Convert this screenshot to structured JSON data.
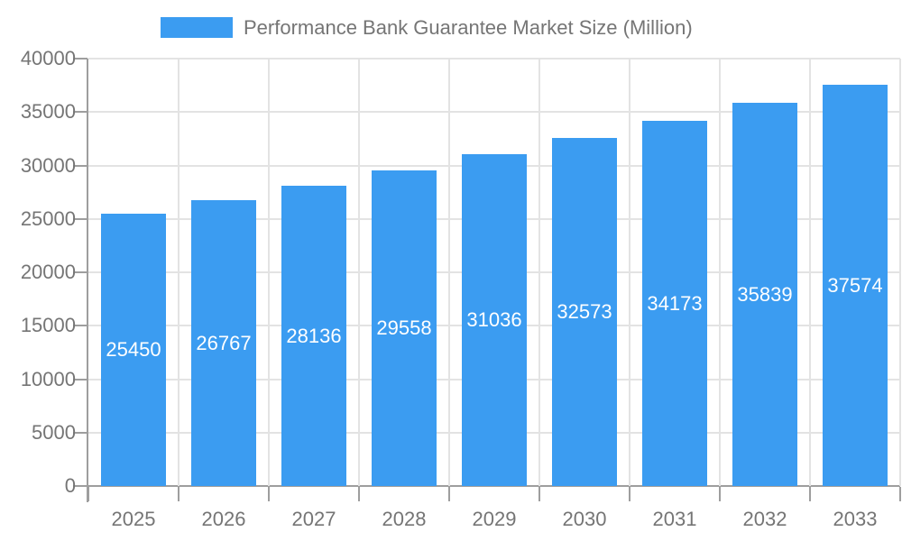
{
  "legend": {
    "label": "Performance Bank Guarantee Market Size (Million)"
  },
  "colors": {
    "bar": "#3B9CF1",
    "grid": "#E3E3E3",
    "axis": "#9E9E9E",
    "text": "#757575",
    "bar_label": "#FFFFFF",
    "background": "#FFFFFF"
  },
  "chart_data": {
    "type": "bar",
    "title": "Performance Bank Guarantee Market Size (Million)",
    "categories": [
      "2025",
      "2026",
      "2027",
      "2028",
      "2029",
      "2030",
      "2031",
      "2032",
      "2033"
    ],
    "values": [
      25450,
      26767,
      28136,
      29558,
      31036,
      32573,
      34173,
      35839,
      37574
    ],
    "xlabel": "",
    "ylabel": "",
    "ylim": [
      0,
      40000
    ],
    "ytick_step": 5000,
    "ytick_labels": [
      "0",
      "5000",
      "10000",
      "15000",
      "20000",
      "25000",
      "30000",
      "35000",
      "40000"
    ],
    "grid": true,
    "legend_position": "top",
    "value_label_position": "inside-center"
  }
}
